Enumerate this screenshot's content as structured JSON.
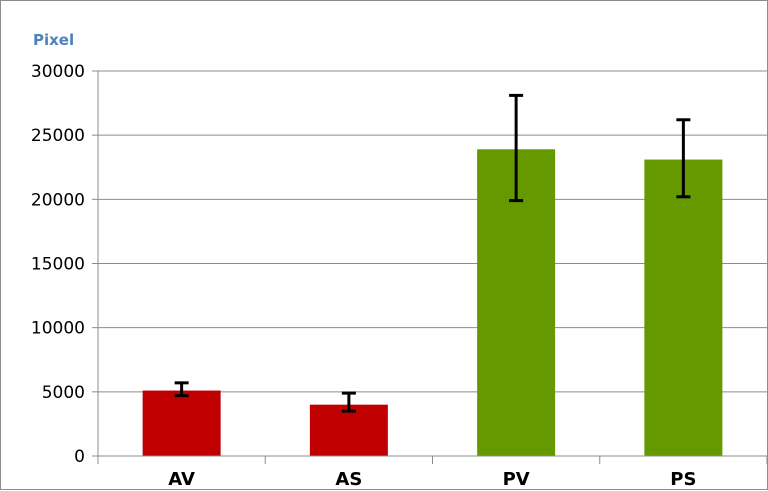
{
  "chart_data": {
    "type": "bar",
    "title": "",
    "xlabel": "",
    "ylabel": "Pixel",
    "ylim": [
      0,
      30000
    ],
    "yticks": [
      0,
      5000,
      10000,
      15000,
      20000,
      25000,
      30000
    ],
    "ytick_labels": [
      "0",
      "5000",
      "10000",
      "15000",
      "20000",
      "25000",
      "30000"
    ],
    "grid": true,
    "categories": [
      "AV",
      "AS",
      "PV",
      "PS"
    ],
    "values": [
      5100,
      4000,
      23900,
      23100
    ],
    "error_low": [
      4700,
      3500,
      19900,
      20200
    ],
    "error_high": [
      5700,
      4900,
      28100,
      26200
    ],
    "bar_colors": [
      "#c00000",
      "#c00000",
      "#669900",
      "#669900"
    ]
  }
}
